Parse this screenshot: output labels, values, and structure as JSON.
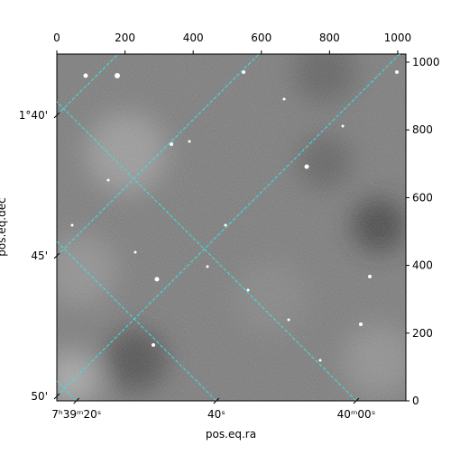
{
  "chart_data": {
    "type": "image",
    "xlabel": "pos.eq.ra",
    "ylabel": "pos.eq.dec",
    "xlim": [
      0,
      1024
    ],
    "ylim": [
      0,
      1024
    ],
    "xticks": [
      0,
      200,
      400,
      600,
      800,
      1000
    ],
    "yticks": [
      0,
      200,
      400,
      600,
      800,
      1000
    ],
    "ra_lim": [
      17.2,
      67.1
    ],
    "ra_ticks": [
      {
        "value": 20,
        "label": "7ʰ39ᵐ20ˢ"
      },
      {
        "value": 40,
        "label": "40ˢ"
      },
      {
        "value": 60,
        "label": "40ᵐ00ˢ"
      }
    ],
    "dec_lim": [
      110.16,
      97.82
    ],
    "dec_ticks": [
      {
        "value": 100,
        "label": "1°40'"
      },
      {
        "value": 105,
        "label": "45'"
      },
      {
        "value": 110,
        "label": "50'"
      }
    ],
    "grid": true,
    "grid_color": "#40e0e0"
  }
}
